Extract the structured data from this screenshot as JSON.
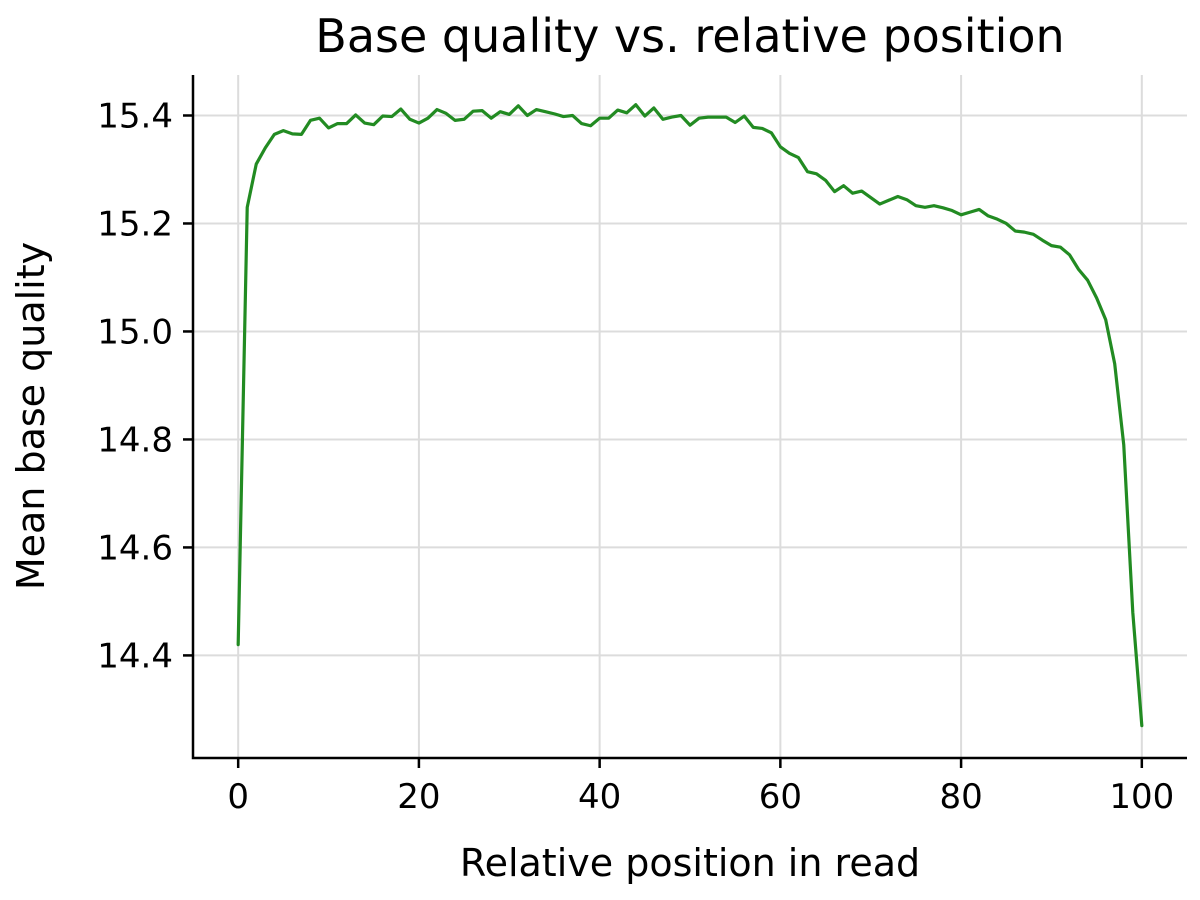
{
  "chart_data": {
    "type": "line",
    "title": "Base quality vs. relative position",
    "xlabel": "Relative position in read",
    "ylabel": "Mean base quality",
    "xlim": [
      -5,
      105
    ],
    "ylim": [
      14.21,
      15.475
    ],
    "xticks": [
      0,
      20,
      40,
      60,
      80,
      100
    ],
    "yticks": [
      14.4,
      14.6,
      14.8,
      15.0,
      15.2,
      15.4
    ],
    "ytick_labels": [
      "14.4",
      "14.6",
      "14.8",
      "15.0",
      "15.2",
      "15.4"
    ],
    "grid": true,
    "series": [
      {
        "color": "#228b22",
        "x": [
          0,
          1,
          2,
          3,
          4,
          5,
          6,
          7,
          8,
          9,
          10,
          11,
          12,
          13,
          14,
          15,
          16,
          17,
          18,
          19,
          20,
          21,
          22,
          23,
          24,
          25,
          26,
          27,
          28,
          29,
          30,
          31,
          32,
          33,
          34,
          35,
          36,
          37,
          38,
          39,
          40,
          41,
          42,
          43,
          44,
          45,
          46,
          47,
          48,
          49,
          50,
          51,
          52,
          53,
          54,
          55,
          56,
          57,
          58,
          59,
          60,
          61,
          62,
          63,
          64,
          65,
          66,
          67,
          68,
          69,
          70,
          71,
          72,
          73,
          74,
          75,
          76,
          77,
          78,
          79,
          80,
          81,
          82,
          83,
          84,
          85,
          86,
          87,
          88,
          89,
          90,
          91,
          92,
          93,
          94,
          95,
          96,
          97,
          98,
          99,
          100
        ],
        "values": [
          14.42,
          15.23,
          15.31,
          15.34,
          15.365,
          15.372,
          15.366,
          15.365,
          15.391,
          15.395,
          15.377,
          15.385,
          15.385,
          15.401,
          15.386,
          15.383,
          15.399,
          15.398,
          15.412,
          15.393,
          15.386,
          15.395,
          15.411,
          15.404,
          15.391,
          15.393,
          15.408,
          15.409,
          15.395,
          15.407,
          15.402,
          15.418,
          15.4,
          15.411,
          15.407,
          15.403,
          15.398,
          15.4,
          15.385,
          15.381,
          15.395,
          15.395,
          15.41,
          15.405,
          15.42,
          15.399,
          15.414,
          15.393,
          15.397,
          15.4,
          15.382,
          15.395,
          15.397,
          15.397,
          15.397,
          15.387,
          15.399,
          15.378,
          15.376,
          15.368,
          15.342,
          15.33,
          15.322,
          15.296,
          15.292,
          15.28,
          15.259,
          15.27,
          15.256,
          15.26,
          15.248,
          15.236,
          15.243,
          15.25,
          15.244,
          15.233,
          15.23,
          15.233,
          15.229,
          15.224,
          15.216,
          15.221,
          15.226,
          15.214,
          15.208,
          15.2,
          15.186,
          15.184,
          15.18,
          15.169,
          15.159,
          15.156,
          15.142,
          15.115,
          15.095,
          15.062,
          15.022,
          14.94,
          14.79,
          14.48,
          14.27
        ]
      }
    ]
  }
}
